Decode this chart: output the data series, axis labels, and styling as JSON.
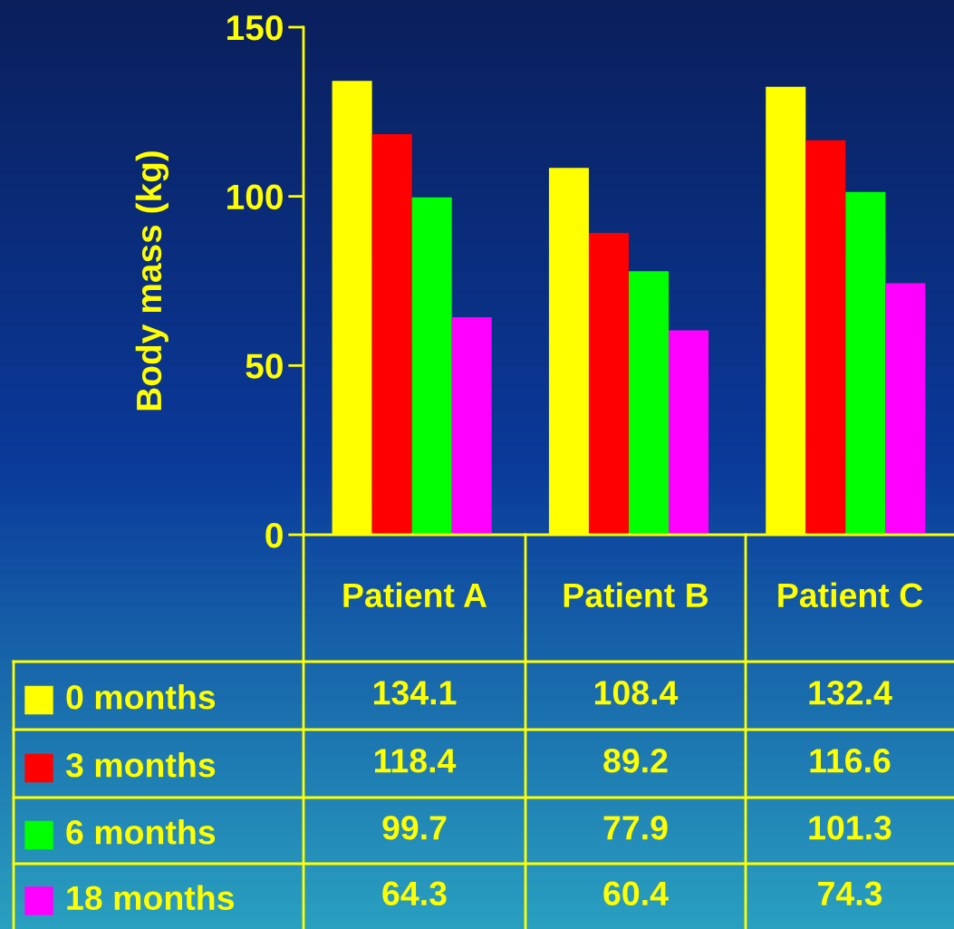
{
  "chart_data": {
    "type": "bar",
    "ylabel": "Body mass (kg)",
    "categories": [
      "Patient A",
      "Patient B",
      "Patient C"
    ],
    "series": [
      {
        "name": "0 months",
        "color": "#ffff00",
        "values": [
          134.1,
          108.4,
          132.4
        ]
      },
      {
        "name": "3 months",
        "color": "#ff0000",
        "values": [
          118.4,
          89.2,
          116.6
        ]
      },
      {
        "name": "6 months",
        "color": "#00ff00",
        "values": [
          99.7,
          77.9,
          101.3
        ]
      },
      {
        "name": "18 months",
        "color": "#ff00ff",
        "values": [
          64.3,
          60.4,
          74.3
        ]
      }
    ],
    "ylim": [
      0,
      150
    ],
    "yticks": [
      0,
      50,
      100,
      150
    ],
    "grid": false,
    "legend": "bottom left",
    "data_labels": true
  }
}
